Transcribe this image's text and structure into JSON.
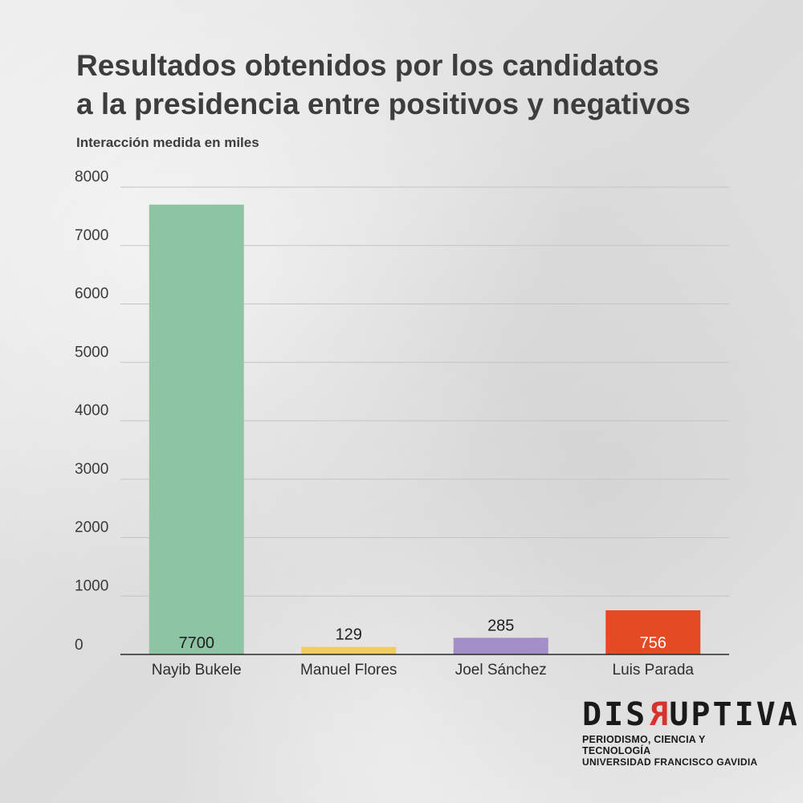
{
  "title_line1": "Resultados obtenidos por los candidatos",
  "title_line2": "a la presidencia entre positivos y negativos",
  "subtitle": "Interacción medida en miles",
  "chart_data": {
    "type": "bar",
    "title": "Resultados obtenidos por los candidatos a la presidencia entre positivos y negativos",
    "ylabel": "Interacción medida en miles",
    "xlabel": "",
    "categories": [
      "Nayib Bukele",
      "Manuel Flores",
      "Joel Sánchez",
      "Luis Parada"
    ],
    "values": [
      7700,
      129,
      285,
      756
    ],
    "value_labels": [
      "7700",
      "129",
      "285",
      "756"
    ],
    "colors": [
      "#8cc4a4",
      "#f0cc62",
      "#a48ec8",
      "#e44a24"
    ],
    "yticks": [
      "0",
      "1000",
      "2000",
      "3000",
      "4000",
      "5000",
      "6000",
      "7000",
      "8000"
    ],
    "ylim": [
      0,
      8000
    ],
    "grid": true
  },
  "logo": {
    "pre": "DIS",
    "r": "R",
    "post": "UPTIVA",
    "line1": "PERIODISMO, CIENCIA Y TECNOLOGÍA",
    "line2": "UNIVERSIDAD FRANCISCO GAVIDIA"
  }
}
